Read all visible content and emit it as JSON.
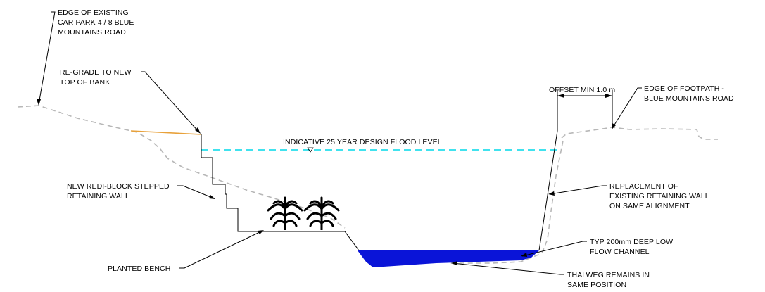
{
  "labels": {
    "car_park": [
      "EDGE OF EXISTING",
      "CAR PARK 4 / 8 BLUE",
      "MOUNTAINS ROAD"
    ],
    "regrade": [
      "RE-GRADE TO NEW",
      "TOP OF BANK"
    ],
    "flood_level": "INDICATIVE 25 YEAR DESIGN FLOOD LEVEL",
    "offset": "OFFSET MIN 1.0 m",
    "footpath": [
      "EDGE OF FOOTPATH -",
      "BLUE MOUNTAINS ROAD"
    ],
    "retaining_wall": [
      "NEW REDI-BLOCK STEPPED",
      "RETAINING WALL"
    ],
    "replacement": [
      "REPLACEMENT OF",
      "EXISTING RETAINING WALL",
      "ON SAME ALIGNMENT"
    ],
    "low_flow": [
      "TYP 200mm DEEP LOW",
      "FLOW CHANNEL"
    ],
    "planted_bench": "PLANTED BENCH",
    "thalweg": [
      "THALWEG REMAINS IN",
      "SAME POSITION"
    ]
  },
  "colors": {
    "existing_ground": "#b7b7b7",
    "flood_line": "#00d8e8",
    "regrade_line": "#e8a13a",
    "low_flow_channel": "#0a14d8",
    "plant": "#000000"
  }
}
